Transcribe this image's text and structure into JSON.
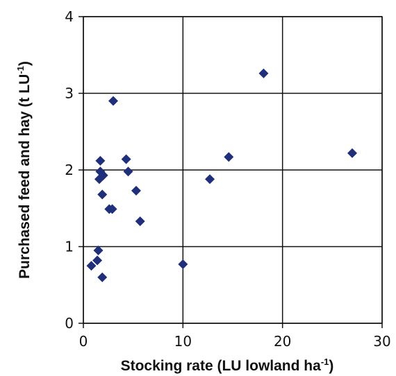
{
  "chart_data": {
    "type": "scatter",
    "xlabel": {
      "main": "Stocking rate (LU lowland ha",
      "sup": "-1",
      "end": ")"
    },
    "ylabel": {
      "main": "Purchased feed and hay (t LU",
      "sup": "-1",
      "end": ")"
    },
    "xlim": [
      0,
      30
    ],
    "ylim": [
      0,
      4
    ],
    "xticks": [
      "0",
      "10",
      "20",
      "30"
    ],
    "yticks": [
      "0",
      "1",
      "2",
      "3",
      "4"
    ],
    "grid": true,
    "marker": "diamond",
    "color": "#1f2f7a",
    "points": [
      {
        "x": 0.8,
        "y": 0.75
      },
      {
        "x": 1.4,
        "y": 0.82
      },
      {
        "x": 1.5,
        "y": 0.95
      },
      {
        "x": 1.9,
        "y": 0.6
      },
      {
        "x": 1.6,
        "y": 1.88
      },
      {
        "x": 1.7,
        "y": 1.98
      },
      {
        "x": 1.7,
        "y": 2.12
      },
      {
        "x": 2.0,
        "y": 1.93
      },
      {
        "x": 1.9,
        "y": 1.68
      },
      {
        "x": 2.6,
        "y": 1.49
      },
      {
        "x": 2.9,
        "y": 1.49
      },
      {
        "x": 3.0,
        "y": 2.9
      },
      {
        "x": 4.3,
        "y": 2.14
      },
      {
        "x": 4.5,
        "y": 1.98
      },
      {
        "x": 5.3,
        "y": 1.73
      },
      {
        "x": 5.7,
        "y": 1.33
      },
      {
        "x": 10.0,
        "y": 0.77
      },
      {
        "x": 12.7,
        "y": 1.88
      },
      {
        "x": 14.6,
        "y": 2.17
      },
      {
        "x": 18.1,
        "y": 3.26
      },
      {
        "x": 27.0,
        "y": 2.22
      }
    ]
  }
}
